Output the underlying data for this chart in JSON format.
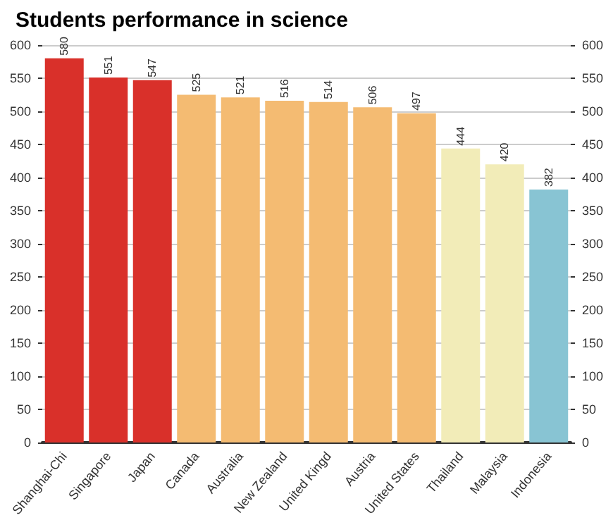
{
  "chart_data": {
    "type": "bar",
    "title": "Students performance in science",
    "categories": [
      "Shanghai-Chi",
      "Singapore",
      "Japan",
      "Canada",
      "Australia",
      "New Zealand",
      "United Kingd",
      "Austria",
      "United States",
      "Thailand",
      "Malaysia",
      "Indonesia"
    ],
    "values": [
      580,
      551,
      547,
      525,
      521,
      516,
      514,
      506,
      497,
      444,
      420,
      382
    ],
    "colors": [
      "#d9302a",
      "#d9302a",
      "#d9302a",
      "#f4bb72",
      "#f4bb72",
      "#f4bb72",
      "#f4bb72",
      "#f4bb72",
      "#f4bb72",
      "#f2ecb8",
      "#f2ecb8",
      "#88c4d3"
    ],
    "ylim": [
      0,
      600
    ],
    "yticks": [
      0,
      50,
      100,
      150,
      200,
      250,
      300,
      350,
      400,
      450,
      500,
      550,
      600
    ],
    "y2lim": [
      0,
      600
    ],
    "y2ticks": [
      0,
      50,
      100,
      150,
      200,
      250,
      300,
      350,
      400,
      450,
      500,
      550,
      600
    ],
    "grid": "y",
    "data_labels": true
  }
}
